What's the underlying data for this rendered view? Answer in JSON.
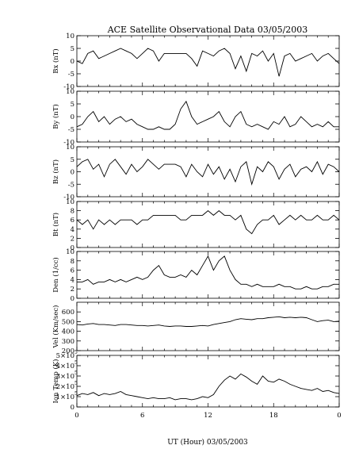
{
  "chart_data": {
    "type": "line",
    "title": "ACE Satellite Observational Data   03/05/2003",
    "xlabel": "UT (Hour)   03/05/2003",
    "x_ticks": [
      "0",
      "6",
      "12",
      "18",
      "0"
    ],
    "xlim": [
      0,
      24
    ],
    "grid": false,
    "panels": [
      {
        "name": "bx",
        "ylabel": "Bx (nT)",
        "ylim": [
          -10,
          10
        ],
        "ytick_values": [
          -10,
          -5,
          0,
          5,
          10
        ],
        "ytick_labels": [
          "-10",
          "-5",
          "0",
          "5",
          "10"
        ],
        "series": [
          {
            "x": [
              0,
              0.5,
              1,
              1.5,
              2,
              2.5,
              3,
              3.5,
              4,
              4.5,
              5,
              5.5,
              6,
              6.5,
              7,
              7.5,
              8,
              8.5,
              9,
              9.5,
              10,
              10.5,
              11,
              11.5,
              12,
              12.5,
              13,
              13.5,
              14,
              14.5,
              15,
              15.5,
              16,
              16.5,
              17,
              17.5,
              18,
              18.5,
              19,
              19.5,
              20,
              20.5,
              21,
              21.5,
              22,
              22.5,
              23,
              23.5,
              24
            ],
            "values": [
              0,
              -1,
              3,
              4,
              1,
              2,
              3,
              4,
              5,
              4,
              3,
              1,
              3,
              5,
              4,
              0,
              3,
              3,
              3,
              3,
              3,
              1,
              -2,
              4,
              3,
              2,
              4,
              5,
              3,
              -3,
              2,
              -4,
              3,
              2,
              4,
              0,
              3,
              -6,
              2,
              3,
              0,
              1,
              2,
              3,
              0,
              2,
              3,
              1,
              -1
            ]
          }
        ]
      },
      {
        "name": "by",
        "ylabel": "By (nT)",
        "ylim": [
          -10,
          10
        ],
        "ytick_values": [
          -10,
          -5,
          0,
          5,
          10
        ],
        "ytick_labels": [
          "-10",
          "-5",
          "0",
          "5",
          "10"
        ],
        "series": [
          {
            "x": [
              0,
              0.5,
              1,
              1.5,
              2,
              2.5,
              3,
              3.5,
              4,
              4.5,
              5,
              5.5,
              6,
              6.5,
              7,
              7.5,
              8,
              8.5,
              9,
              9.5,
              10,
              10.5,
              11,
              11.5,
              12,
              12.5,
              13,
              13.5,
              14,
              14.5,
              15,
              15.5,
              16,
              16.5,
              17,
              17.5,
              18,
              18.5,
              19,
              19.5,
              20,
              20.5,
              21,
              21.5,
              22,
              22.5,
              23,
              23.5,
              24
            ],
            "values": [
              -4,
              -3,
              0,
              2,
              -2,
              0,
              -3,
              -1,
              0,
              -2,
              -1,
              -3,
              -4,
              -5,
              -5,
              -4,
              -5,
              -5,
              -3,
              3,
              6,
              0,
              -3,
              -2,
              -1,
              0,
              2,
              -2,
              -4,
              0,
              2,
              -3,
              -4,
              -3,
              -4,
              -5,
              -2,
              -3,
              0,
              -4,
              -3,
              0,
              -2,
              -4,
              -3,
              -4,
              -2,
              -4,
              -4
            ]
          }
        ]
      },
      {
        "name": "bz",
        "ylabel": "Bz (nT)",
        "ylim": [
          -10,
          10
        ],
        "ytick_values": [
          -10,
          -5,
          0,
          5,
          10
        ],
        "ytick_labels": [
          "-10",
          "-5",
          "0",
          "5",
          "10"
        ],
        "series": [
          {
            "x": [
              0,
              0.5,
              1,
              1.5,
              2,
              2.5,
              3,
              3.5,
              4,
              4.5,
              5,
              5.5,
              6,
              6.5,
              7,
              7.5,
              8,
              8.5,
              9,
              9.5,
              10,
              10.5,
              11,
              11.5,
              12,
              12.5,
              13,
              13.5,
              14,
              14.5,
              15,
              15.5,
              16,
              16.5,
              17,
              17.5,
              18,
              18.5,
              19,
              19.5,
              20,
              20.5,
              21,
              21.5,
              22,
              22.5,
              23,
              23.5,
              24
            ],
            "values": [
              2,
              4,
              5,
              1,
              3,
              -2,
              3,
              5,
              2,
              -1,
              3,
              0,
              2,
              5,
              3,
              1,
              3,
              3,
              3,
              2,
              -2,
              3,
              0,
              -2,
              3,
              -1,
              2,
              -3,
              1,
              -4,
              2,
              4,
              -5,
              2,
              0,
              4,
              2,
              -3,
              1,
              3,
              -2,
              1,
              2,
              0,
              4,
              -1,
              3,
              2,
              0
            ]
          }
        ]
      },
      {
        "name": "bt",
        "ylabel": "Bt (nT)",
        "ylim": [
          0,
          10
        ],
        "ytick_values": [
          0,
          2,
          4,
          6,
          8,
          10
        ],
        "ytick_labels": [
          "0",
          "2",
          "4",
          "6",
          "8",
          "10"
        ],
        "series": [
          {
            "x": [
              0,
              0.5,
              1,
              1.5,
              2,
              2.5,
              3,
              3.5,
              4,
              4.5,
              5,
              5.5,
              6,
              6.5,
              7,
              7.5,
              8,
              8.5,
              9,
              9.5,
              10,
              10.5,
              11,
              11.5,
              12,
              12.5,
              13,
              13.5,
              14,
              14.5,
              15,
              15.5,
              16,
              16.5,
              17,
              17.5,
              18,
              18.5,
              19,
              19.5,
              20,
              20.5,
              21,
              21.5,
              22,
              22.5,
              23,
              23.5,
              24
            ],
            "values": [
              6,
              5,
              6,
              4,
              6,
              5,
              6,
              5,
              6,
              6,
              6,
              5,
              6,
              6,
              7,
              7,
              7,
              7,
              7,
              6,
              6,
              7,
              7,
              7,
              8,
              7,
              8,
              7,
              7,
              6,
              7,
              4,
              3,
              5,
              6,
              6,
              7,
              5,
              6,
              7,
              6,
              7,
              6,
              6,
              7,
              6,
              6,
              7,
              6
            ]
          }
        ]
      },
      {
        "name": "den",
        "ylabel": "Den (1/cc)",
        "ylim": [
          0,
          10
        ],
        "ytick_values": [
          0,
          2,
          4,
          6,
          8,
          10
        ],
        "ytick_labels": [
          "0",
          "2",
          "4",
          "6",
          "8",
          "10"
        ],
        "series": [
          {
            "x": [
              0,
              0.5,
              1,
              1.5,
              2,
              2.5,
              3,
              3.5,
              4,
              4.5,
              5,
              5.5,
              6,
              6.5,
              7,
              7.5,
              8,
              8.5,
              9,
              9.5,
              10,
              10.5,
              11,
              11.5,
              12,
              12.5,
              13,
              13.5,
              14,
              14.5,
              15,
              15.5,
              16,
              16.5,
              17,
              17.5,
              18,
              18.5,
              19,
              19.5,
              20,
              20.5,
              21,
              21.5,
              22,
              22.5,
              23,
              23.5,
              24
            ],
            "values": [
              3.5,
              3.5,
              4,
              3,
              3.5,
              3.5,
              4,
              3.5,
              4,
              3.5,
              4,
              4.5,
              4,
              4.5,
              6,
              7,
              5,
              4.5,
              4.5,
              5,
              4.5,
              6,
              5,
              7,
              9,
              6,
              8,
              9,
              6,
              4,
              3,
              3,
              2.5,
              3,
              2.5,
              2.5,
              2.5,
              3,
              2.5,
              2.5,
              2,
              2,
              2.5,
              2,
              2,
              2.5,
              2.5,
              3,
              3
            ]
          }
        ]
      },
      {
        "name": "vel",
        "ylabel": "Vel (Km/sec)",
        "ylim": [
          200,
          700
        ],
        "ytick_values": [
          200,
          300,
          400,
          500,
          600
        ],
        "ytick_labels": [
          "200",
          "300",
          "400",
          "500",
          "600"
        ],
        "series": [
          {
            "x": [
              0,
              0.5,
              1,
              1.5,
              2,
              2.5,
              3,
              3.5,
              4,
              4.5,
              5,
              5.5,
              6,
              6.5,
              7,
              7.5,
              8,
              8.5,
              9,
              9.5,
              10,
              10.5,
              11,
              11.5,
              12,
              12.5,
              13,
              13.5,
              14,
              14.5,
              15,
              15.5,
              16,
              16.5,
              17,
              17.5,
              18,
              18.5,
              19,
              19.5,
              20,
              20.5,
              21,
              21.5,
              22,
              22.5,
              23,
              23.5,
              24
            ],
            "values": [
              470,
              465,
              475,
              480,
              470,
              470,
              465,
              460,
              470,
              470,
              465,
              460,
              460,
              455,
              460,
              465,
              455,
              450,
              455,
              455,
              450,
              450,
              455,
              460,
              455,
              470,
              480,
              490,
              500,
              520,
              530,
              525,
              520,
              530,
              530,
              540,
              545,
              550,
              540,
              545,
              540,
              545,
              540,
              520,
              500,
              510,
              515,
              500,
              505
            ]
          }
        ]
      },
      {
        "name": "temp",
        "ylabel": "Ion Temp (K)",
        "ylim": [
          0,
          500000
        ],
        "ytick_values": [
          0,
          100000,
          200000,
          300000,
          400000,
          500000
        ],
        "ytick_labels": [
          "0",
          "1×10",
          "2×10",
          "3×10",
          "4×10",
          "5×10"
        ],
        "ytick_exponent": "5",
        "series": [
          {
            "x": [
              0,
              0.5,
              1,
              1.5,
              2,
              2.5,
              3,
              3.5,
              4,
              4.5,
              5,
              5.5,
              6,
              6.5,
              7,
              7.5,
              8,
              8.5,
              9,
              9.5,
              10,
              10.5,
              11,
              11.5,
              12,
              12.5,
              13,
              13.5,
              14,
              14.5,
              15,
              15.5,
              16,
              16.5,
              17,
              17.5,
              18,
              18.5,
              19,
              19.5,
              20,
              20.5,
              21,
              21.5,
              22,
              22.5,
              23,
              23.5,
              24
            ],
            "values": [
              110000,
              130000,
              120000,
              140000,
              110000,
              130000,
              120000,
              130000,
              150000,
              120000,
              110000,
              100000,
              90000,
              80000,
              90000,
              80000,
              80000,
              90000,
              70000,
              80000,
              80000,
              70000,
              80000,
              100000,
              90000,
              120000,
              200000,
              260000,
              300000,
              270000,
              320000,
              290000,
              250000,
              220000,
              300000,
              250000,
              240000,
              270000,
              250000,
              220000,
              200000,
              180000,
              170000,
              160000,
              180000,
              150000,
              160000,
              140000,
              130000
            ]
          }
        ]
      }
    ]
  }
}
